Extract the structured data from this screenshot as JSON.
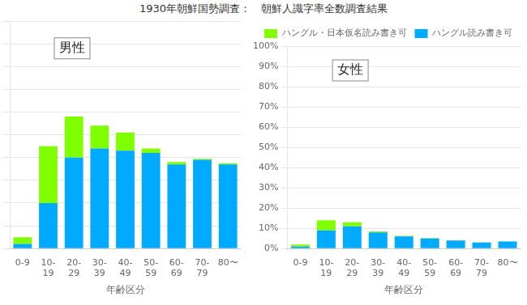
{
  "chart_data": [
    {
      "type": "bar",
      "title": "1930年朝鮮国勢調査：　朝鮮人識字率全数調査結果",
      "categories": [
        "0-9",
        "10-\n19",
        "20-\n29",
        "30-\n39",
        "40-\n49",
        "50-\n59",
        "60-\n69",
        "70-\n79",
        "80〜"
      ],
      "series": [
        {
          "color": "#00aaff",
          "values": [
            2,
            20,
            40,
            44,
            43,
            42,
            37,
            39,
            37
          ]
        },
        {
          "color": "#80ff00",
          "values": [
            3,
            25,
            18,
            10,
            8,
            2,
            1,
            0.5,
            0.5
          ]
        }
      ],
      "x_label": "年齢区分",
      "annotations": [
        "男性"
      ],
      "stacked": true,
      "grid": true,
      "tick_labels": "x",
      "ylim": [
        0,
        100
      ],
      "yticks": [
        0,
        10,
        20,
        30,
        40,
        50,
        60,
        70,
        80,
        90,
        100
      ]
    },
    {
      "type": "bar",
      "categories": [
        "0-9",
        "10-\n19",
        "20-\n29",
        "30-\n39",
        "40-\n49",
        "50-\n59",
        "60-\n69",
        "70-\n79",
        "80〜"
      ],
      "series": [
        {
          "name": "ハングル読み書き可",
          "color": "#00aaff",
          "values": [
            1,
            9,
            11,
            8,
            6,
            5,
            4,
            3,
            3.5
          ]
        },
        {
          "name": "ハングル・日本仮名読み書き可",
          "color": "#80ff00",
          "values": [
            1,
            5,
            2,
            0.5,
            0.3,
            0.2,
            0.1,
            0.1,
            0.1
          ]
        }
      ],
      "x_label": "年齢区分",
      "annotations": [
        "女性"
      ],
      "stacked": true,
      "grid": true,
      "legend": "upper right",
      "ylim": [
        0,
        100
      ],
      "yticks": [
        {
          "value": 0,
          "label": "0%"
        },
        {
          "value": 10,
          "label": "10%"
        },
        {
          "value": 20,
          "label": "20%"
        },
        {
          "value": 30,
          "label": "30%"
        },
        {
          "value": 40,
          "label": "40%"
        },
        {
          "value": 50,
          "label": "50%"
        },
        {
          "value": 60,
          "label": "60%"
        },
        {
          "value": 70,
          "label": "70%"
        },
        {
          "value": 80,
          "label": "80%"
        },
        {
          "value": 90,
          "label": "90%"
        },
        {
          "value": 100,
          "label": "100%"
        }
      ]
    }
  ]
}
